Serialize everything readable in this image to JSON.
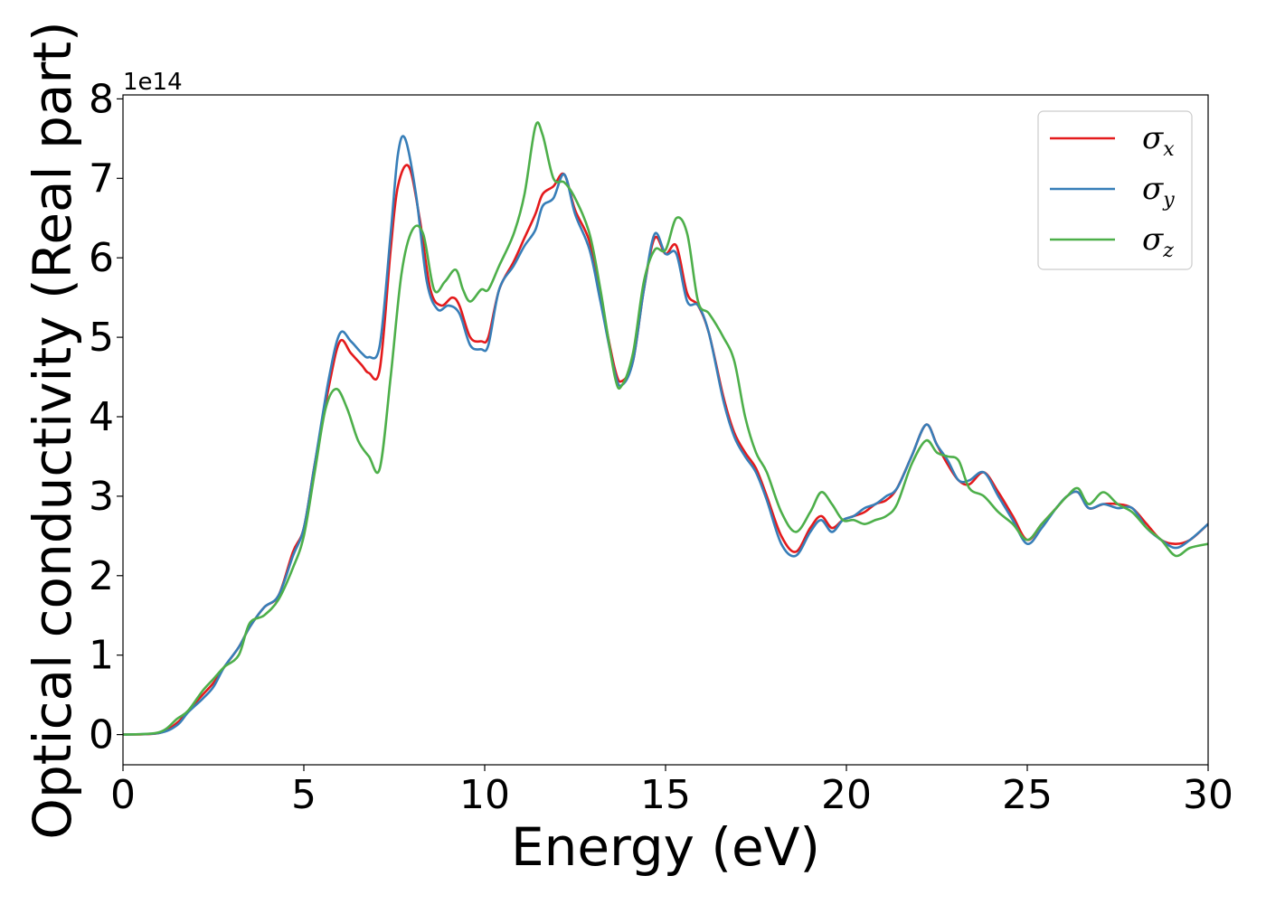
{
  "chart_data": {
    "type": "line",
    "title": "",
    "xlabel": "Energy (eV)",
    "ylabel": "Optical conductivity (Real part)",
    "y_offset_label": "1e14",
    "y_scale": 100000000000000.0,
    "xlim": [
      0,
      30
    ],
    "ylim": [
      -0.38,
      8.05
    ],
    "xticks": [
      0,
      5,
      10,
      15,
      20,
      25,
      30
    ],
    "yticks": [
      0,
      1,
      2,
      3,
      4,
      5,
      6,
      7,
      8
    ],
    "grid": false,
    "legend_position": "top-right",
    "series": [
      {
        "name": "σx",
        "symbol": "σ",
        "subscript": "x",
        "color": "#e41a1c",
        "x": [
          0,
          1.0,
          1.5,
          1.8,
          2.2,
          2.5,
          2.8,
          3.2,
          3.5,
          3.9,
          4.3,
          4.7,
          5.0,
          5.3,
          5.7,
          6.0,
          6.3,
          6.6,
          6.8,
          7.1,
          7.4,
          7.6,
          7.9,
          8.2,
          8.5,
          8.8,
          9.1,
          9.3,
          9.6,
          9.9,
          10.1,
          10.4,
          10.8,
          11.1,
          11.4,
          11.6,
          11.9,
          12.2,
          12.5,
          12.9,
          13.2,
          13.6,
          13.8,
          14.1,
          14.4,
          14.7,
          15.0,
          15.3,
          15.6,
          15.9,
          16.2,
          16.6,
          16.9,
          17.2,
          17.5,
          17.8,
          18.2,
          18.6,
          19.0,
          19.3,
          19.6,
          19.9,
          20.2,
          20.5,
          20.8,
          21.1,
          21.4,
          21.8,
          22.2,
          22.5,
          22.8,
          23.1,
          23.4,
          23.8,
          24.2,
          24.6,
          25.0,
          25.4,
          25.8,
          26.1,
          26.4,
          26.7,
          27.1,
          27.5,
          27.9,
          28.3,
          28.7,
          29.1,
          29.5,
          30.0
        ],
        "y": [
          0,
          0.02,
          0.15,
          0.3,
          0.5,
          0.65,
          0.85,
          1.1,
          1.35,
          1.6,
          1.75,
          2.3,
          2.6,
          3.4,
          4.4,
          4.95,
          4.8,
          4.65,
          4.55,
          4.6,
          6.1,
          6.9,
          7.15,
          6.5,
          5.6,
          5.4,
          5.5,
          5.4,
          5.0,
          4.95,
          5.0,
          5.6,
          5.95,
          6.25,
          6.55,
          6.8,
          6.9,
          7.05,
          6.6,
          6.2,
          5.5,
          4.6,
          4.45,
          4.7,
          5.6,
          6.25,
          6.05,
          6.15,
          5.55,
          5.4,
          5.05,
          4.25,
          3.8,
          3.55,
          3.35,
          3.0,
          2.5,
          2.3,
          2.6,
          2.75,
          2.6,
          2.7,
          2.75,
          2.8,
          2.9,
          2.95,
          3.1,
          3.5,
          3.9,
          3.65,
          3.4,
          3.2,
          3.15,
          3.3,
          3.05,
          2.75,
          2.45,
          2.65,
          2.85,
          3.0,
          3.05,
          2.85,
          2.9,
          2.9,
          2.85,
          2.65,
          2.45,
          2.4,
          2.45,
          2.65
        ]
      },
      {
        "name": "σy",
        "symbol": "σ",
        "subscript": "y",
        "color": "#377eb8",
        "x": [
          0,
          1.0,
          1.5,
          1.8,
          2.2,
          2.5,
          2.8,
          3.2,
          3.5,
          3.9,
          4.3,
          4.7,
          5.0,
          5.3,
          5.7,
          6.0,
          6.3,
          6.6,
          6.8,
          7.1,
          7.4,
          7.6,
          7.8,
          8.1,
          8.4,
          8.7,
          9.0,
          9.3,
          9.6,
          9.9,
          10.1,
          10.4,
          10.8,
          11.1,
          11.4,
          11.6,
          11.9,
          12.2,
          12.5,
          12.9,
          13.2,
          13.6,
          13.8,
          14.1,
          14.4,
          14.7,
          15.0,
          15.3,
          15.6,
          15.9,
          16.2,
          16.6,
          16.9,
          17.2,
          17.5,
          17.8,
          18.2,
          18.6,
          19.0,
          19.3,
          19.6,
          19.9,
          20.2,
          20.5,
          20.8,
          21.1,
          21.4,
          21.8,
          22.2,
          22.5,
          22.8,
          23.1,
          23.4,
          23.8,
          24.2,
          24.6,
          25.0,
          25.4,
          25.8,
          26.1,
          26.4,
          26.7,
          27.1,
          27.5,
          27.9,
          28.3,
          28.7,
          29.1,
          29.5,
          30.0
        ],
        "y": [
          0,
          0.02,
          0.12,
          0.28,
          0.45,
          0.6,
          0.85,
          1.1,
          1.35,
          1.6,
          1.75,
          2.25,
          2.6,
          3.4,
          4.5,
          5.05,
          4.95,
          4.8,
          4.75,
          4.9,
          6.3,
          7.3,
          7.5,
          6.8,
          5.7,
          5.35,
          5.4,
          5.3,
          4.9,
          4.85,
          4.9,
          5.6,
          5.9,
          6.15,
          6.35,
          6.65,
          6.75,
          7.05,
          6.55,
          6.1,
          5.45,
          4.55,
          4.4,
          4.7,
          5.6,
          6.3,
          6.05,
          6.05,
          5.45,
          5.4,
          5.05,
          4.2,
          3.75,
          3.5,
          3.3,
          2.95,
          2.4,
          2.25,
          2.55,
          2.7,
          2.55,
          2.7,
          2.75,
          2.85,
          2.9,
          3.0,
          3.1,
          3.5,
          3.9,
          3.65,
          3.45,
          3.2,
          3.2,
          3.3,
          3.0,
          2.7,
          2.4,
          2.6,
          2.85,
          3.0,
          3.05,
          2.85,
          2.9,
          2.85,
          2.85,
          2.6,
          2.45,
          2.35,
          2.45,
          2.65
        ]
      },
      {
        "name": "σz",
        "symbol": "σ",
        "subscript": "z",
        "color": "#4daf4a",
        "x": [
          0,
          1.0,
          1.5,
          1.8,
          2.2,
          2.5,
          2.8,
          3.2,
          3.5,
          3.9,
          4.3,
          4.7,
          5.0,
          5.3,
          5.6,
          5.9,
          6.2,
          6.5,
          6.8,
          7.1,
          7.4,
          7.7,
          8.0,
          8.3,
          8.6,
          8.9,
          9.2,
          9.4,
          9.6,
          9.9,
          10.1,
          10.4,
          10.8,
          11.1,
          11.4,
          11.6,
          11.9,
          12.2,
          12.5,
          12.9,
          13.2,
          13.6,
          13.8,
          14.1,
          14.4,
          14.7,
          15.0,
          15.3,
          15.6,
          15.9,
          16.2,
          16.6,
          16.9,
          17.2,
          17.5,
          17.8,
          18.2,
          18.6,
          19.0,
          19.3,
          19.6,
          19.9,
          20.2,
          20.5,
          20.8,
          21.1,
          21.4,
          21.8,
          22.2,
          22.5,
          22.8,
          23.1,
          23.4,
          23.8,
          24.2,
          24.6,
          25.0,
          25.4,
          25.8,
          26.1,
          26.4,
          26.7,
          27.1,
          27.5,
          27.9,
          28.3,
          28.7,
          29.1,
          29.5,
          30.0
        ],
        "y": [
          0,
          0.03,
          0.2,
          0.3,
          0.55,
          0.7,
          0.85,
          1.0,
          1.4,
          1.5,
          1.7,
          2.1,
          2.5,
          3.3,
          4.1,
          4.35,
          4.1,
          3.7,
          3.5,
          3.35,
          4.5,
          5.8,
          6.35,
          6.3,
          5.6,
          5.7,
          5.85,
          5.6,
          5.45,
          5.6,
          5.6,
          5.9,
          6.3,
          6.8,
          7.65,
          7.55,
          7.0,
          6.95,
          6.75,
          6.3,
          5.6,
          4.5,
          4.4,
          4.8,
          5.7,
          6.1,
          6.1,
          6.5,
          6.3,
          5.45,
          5.3,
          5.0,
          4.7,
          4.0,
          3.55,
          3.3,
          2.8,
          2.55,
          2.8,
          3.05,
          2.9,
          2.7,
          2.7,
          2.65,
          2.7,
          2.75,
          2.9,
          3.4,
          3.7,
          3.55,
          3.5,
          3.45,
          3.1,
          3.0,
          2.8,
          2.65,
          2.45,
          2.65,
          2.85,
          3.0,
          3.1,
          2.9,
          3.05,
          2.9,
          2.8,
          2.6,
          2.45,
          2.25,
          2.35,
          2.4
        ]
      }
    ]
  }
}
